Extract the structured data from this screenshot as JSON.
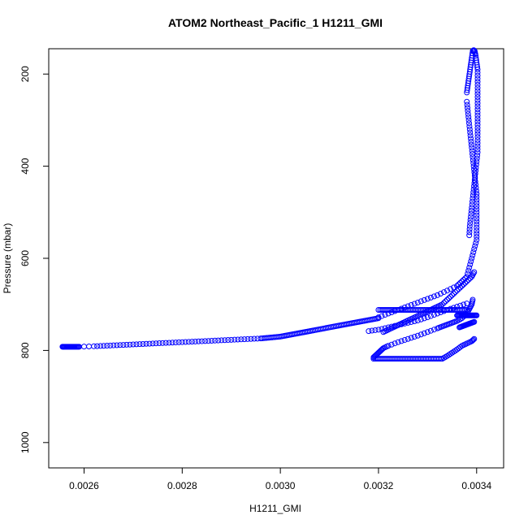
{
  "chart_data": {
    "type": "scatter",
    "title": "ATOM2 Northeast_Pacific_1 H1211_GMI",
    "xlabel": "H1211_GMI",
    "ylabel": "Pressure (mbar)",
    "xlim": [
      0.002528,
      0.003455
    ],
    "ylim": [
      1055,
      145
    ],
    "y_reversed": true,
    "x_ticks": [
      0.0026,
      0.0028,
      0.003,
      0.0032,
      0.0034
    ],
    "x_tick_labels": [
      "0.0026",
      "0.0028",
      "0.0030",
      "0.0032",
      "0.0034"
    ],
    "y_ticks": [
      200,
      400,
      600,
      800,
      1000
    ],
    "y_tick_labels": [
      "200",
      "400",
      "600",
      "800",
      "1000"
    ],
    "marker": "open-circle",
    "color": "#0000ff",
    "grid": false,
    "legend": "none",
    "series": [
      {
        "x": [
          0.002556,
          0.00256,
          0.002565,
          0.00257,
          0.002575,
          0.00258,
          0.002585,
          0.00259,
          0.00262,
          0.00264,
          0.00266,
          0.00268,
          0.0027,
          0.00272,
          0.00274,
          0.00276,
          0.00278,
          0.0028,
          0.00282,
          0.00284,
          0.00286,
          0.00288,
          0.0029,
          0.00292,
          0.00294,
          0.00296,
          0.00297,
          0.00298,
          0.00299,
          0.003,
          0.00301,
          0.00302,
          0.00303,
          0.00304,
          0.00305,
          0.00306,
          0.00307,
          0.00308,
          0.00309,
          0.0031,
          0.00311,
          0.00312,
          0.00313,
          0.00314,
          0.00315,
          0.00316,
          0.00317,
          0.00318,
          0.00319,
          0.0032
        ],
        "y": [
          792,
          792,
          792,
          792,
          792,
          792,
          792,
          792,
          791,
          790,
          789,
          788,
          787,
          786,
          785,
          784,
          783,
          782,
          781,
          780,
          779,
          778,
          777,
          776,
          775,
          774,
          773,
          772,
          771,
          770,
          768,
          766,
          764,
          762,
          760,
          758,
          756,
          754,
          752,
          750,
          748,
          746,
          744,
          742,
          740,
          738,
          736,
          734,
          732,
          730
        ]
      },
      {
        "x": [
          0.0032,
          0.00322,
          0.00324,
          0.00326,
          0.00328,
          0.0033,
          0.00332,
          0.00334,
          0.00336,
          0.00337,
          0.00338,
          0.003385,
          0.00339,
          0.003395,
          0.0034,
          0.0034,
          0.0034,
          0.0034,
          0.0034,
          0.0034,
          0.003398,
          0.003396,
          0.003394,
          0.003392,
          0.00339,
          0.003388,
          0.003386,
          0.003384,
          0.003382,
          0.00338
        ],
        "y": [
          728,
          720,
          712,
          704,
          696,
          688,
          680,
          670,
          660,
          650,
          640,
          620,
          600,
          580,
          560,
          540,
          520,
          500,
          480,
          460,
          440,
          420,
          400,
          380,
          360,
          340,
          320,
          300,
          280,
          260
        ]
      },
      {
        "x": [
          0.00338,
          0.003382,
          0.003384,
          0.003386,
          0.003388,
          0.00339,
          0.003392,
          0.003394,
          0.003396,
          0.003398,
          0.0034,
          0.003402,
          0.003402,
          0.003402,
          0.003402,
          0.003402,
          0.003402,
          0.003402,
          0.003402,
          0.003402,
          0.003402,
          0.0034,
          0.003398,
          0.003396,
          0.003394,
          0.003392,
          0.00339,
          0.003388,
          0.003386,
          0.003385
        ],
        "y": [
          240,
          225,
          210,
          195,
          180,
          165,
          150,
          148,
          150,
          160,
          175,
          190,
          210,
          230,
          250,
          270,
          290,
          310,
          330,
          350,
          370,
          390,
          410,
          430,
          450,
          470,
          490,
          510,
          530,
          550
        ]
      },
      {
        "x": [
          0.00321,
          0.00322,
          0.00323,
          0.00324,
          0.00325,
          0.00326,
          0.00327,
          0.00328,
          0.00329,
          0.0033,
          0.00331,
          0.00332,
          0.00333,
          0.00334,
          0.00335,
          0.00336,
          0.00337,
          0.00338,
          0.00339,
          0.003395
        ],
        "y": [
          760,
          755,
          750,
          745,
          740,
          735,
          730,
          725,
          720,
          715,
          710,
          705,
          700,
          690,
          680,
          670,
          660,
          650,
          640,
          630
        ]
      },
      {
        "x": [
          0.00319,
          0.003195,
          0.0032,
          0.003205,
          0.00321,
          0.00322,
          0.00324,
          0.00326,
          0.00328,
          0.0033,
          0.00332,
          0.00333,
          0.00334,
          0.00335,
          0.00336,
          0.00337,
          0.00338,
          0.003385,
          0.00339,
          0.003392
        ],
        "y": [
          815,
          810,
          805,
          800,
          795,
          790,
          782,
          775,
          768,
          760,
          752,
          748,
          744,
          740,
          736,
          730,
          720,
          710,
          700,
          690
        ]
      },
      {
        "x": [
          0.00319,
          0.0032,
          0.00321,
          0.00322,
          0.00323,
          0.00324,
          0.00325,
          0.00326,
          0.00327,
          0.00328,
          0.00329,
          0.0033,
          0.00331,
          0.00332,
          0.00333,
          0.00334,
          0.00335,
          0.00336,
          0.00337,
          0.00338,
          0.00339,
          0.003395
        ],
        "y": [
          818,
          818,
          818,
          818,
          818,
          818,
          818,
          818,
          818,
          818,
          818,
          818,
          818,
          818,
          818,
          812,
          805,
          798,
          790,
          785,
          780,
          775
        ]
      },
      {
        "x": [
          0.0032,
          0.00321,
          0.00322,
          0.00323,
          0.00324,
          0.00325,
          0.00326,
          0.00327,
          0.00328,
          0.00329,
          0.0033,
          0.00331,
          0.00332,
          0.00333,
          0.00334,
          0.00335,
          0.00336,
          0.00337,
          0.00338
        ],
        "y": [
          712,
          712,
          712,
          712,
          712,
          712,
          712,
          712,
          712,
          712,
          712,
          712,
          712,
          712,
          712,
          712,
          712,
          712,
          712
        ]
      },
      {
        "x": [
          0.00336,
          0.003365,
          0.00337,
          0.003375,
          0.00338,
          0.003385,
          0.00339,
          0.003395,
          0.0034
        ],
        "y": [
          724,
          724,
          724,
          724,
          724,
          724,
          724,
          724,
          724
        ]
      },
      {
        "x": [
          0.003365,
          0.00337,
          0.003375,
          0.00338,
          0.003385,
          0.00339,
          0.003395
        ],
        "y": [
          750,
          748,
          746,
          744,
          742,
          740,
          738
        ]
      },
      {
        "x": [
          0.00318,
          0.0032,
          0.00322,
          0.00324,
          0.00326,
          0.00328,
          0.0033,
          0.00332,
          0.00334,
          0.00336,
          0.00338
        ],
        "y": [
          758,
          755,
          750,
          745,
          740,
          735,
          728,
          720,
          712,
          705,
          698
        ]
      }
    ]
  }
}
